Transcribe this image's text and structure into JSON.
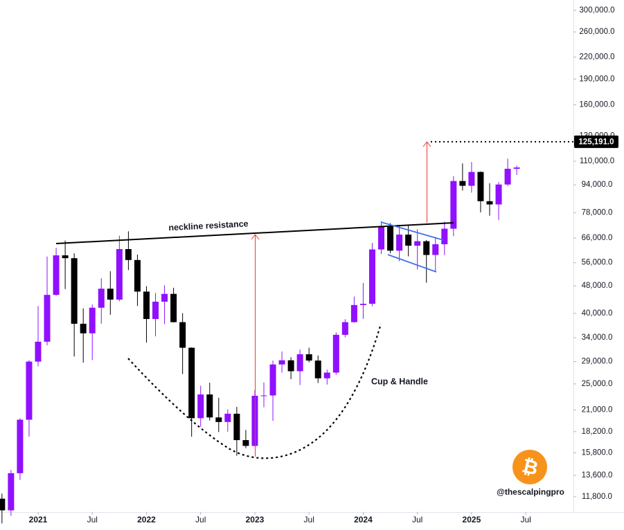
{
  "chart_data": {
    "type": "candlestick",
    "log_scale": true,
    "up_color": "#9010ff",
    "down_color": "#000000",
    "open": [
      11650,
      10780,
      13800,
      19700,
      29000,
      33100,
      45200,
      58800,
      57700,
      37300,
      35000,
      41500,
      47100,
      43800,
      61300,
      57000,
      46200,
      38500,
      43200,
      45500,
      37700,
      31800,
      19900,
      23300,
      20000,
      19400,
      20500,
      17200,
      16550,
      23100,
      23150,
      28450,
      29250,
      27200,
      30450,
      29200,
      25950,
      26950,
      34650,
      37700,
      42250,
      42600,
      61150,
      71300,
      60650,
      67500,
      62700,
      64600,
      58950,
      63300,
      70200,
      96400,
      93400,
      102400,
      84300,
      82500,
      94200,
      104600
    ],
    "high": [
      12050,
      14100,
      19900,
      29300,
      41950,
      58350,
      61780,
      64900,
      59600,
      41300,
      42400,
      50500,
      52900,
      67000,
      69000,
      59100,
      47900,
      45800,
      48200,
      47400,
      40000,
      31900,
      24700,
      25200,
      22800,
      21100,
      21450,
      18400,
      23950,
      25250,
      29200,
      31000,
      29850,
      31400,
      31800,
      30200,
      27500,
      35200,
      38450,
      44700,
      48950,
      63900,
      73800,
      72800,
      71950,
      71950,
      70000,
      65100,
      66500,
      73600,
      99600,
      108350,
      109400,
      102750,
      95000,
      95750,
      111900,
      106800
    ],
    "low": [
      9880,
      10400,
      13200,
      17600,
      28100,
      32300,
      44950,
      47000,
      30000,
      28800,
      29300,
      37300,
      39600,
      43300,
      53300,
      42000,
      32900,
      34300,
      37200,
      37600,
      26700,
      17600,
      18800,
      19600,
      18150,
      18200,
      15500,
      16300,
      16500,
      21400,
      19550,
      26950,
      25800,
      24800,
      28850,
      25150,
      24900,
      26550,
      34100,
      37600,
      38550,
      41900,
      59300,
      59600,
      56550,
      58400,
      53500,
      49000,
      52550,
      58900,
      66800,
      90500,
      89250,
      78250,
      76550,
      74400,
      93300,
      100400
    ],
    "close": [
      10780,
      13800,
      19700,
      29000,
      33100,
      45200,
      58800,
      57700,
      37300,
      35000,
      41500,
      47100,
      43800,
      61300,
      57000,
      46200,
      38500,
      43200,
      45500,
      37700,
      31800,
      19900,
      23300,
      20000,
      19400,
      20500,
      17200,
      16550,
      23100,
      23150,
      28450,
      29250,
      27200,
      30450,
      29200,
      25950,
      26950,
      34650,
      37700,
      42250,
      42600,
      61150,
      71300,
      60650,
      67500,
      62700,
      64600,
      58950,
      63300,
      70200,
      96400,
      93400,
      102400,
      84300,
      82500,
      94200,
      104600,
      105500
    ],
    "xlim": [
      -0.218,
      63.28
    ],
    "xticks": [
      {
        "value": 4,
        "label": "2021"
      },
      {
        "value": 10,
        "label": "Jul"
      },
      {
        "value": 16,
        "label": "2022"
      },
      {
        "value": 22,
        "label": "Jul"
      },
      {
        "value": 28,
        "label": "2023"
      },
      {
        "value": 34,
        "label": "Jul"
      },
      {
        "value": 40,
        "label": "2024"
      },
      {
        "value": 46,
        "label": "Jul"
      },
      {
        "value": 52,
        "label": "2025"
      },
      {
        "value": 58,
        "label": "Jul"
      }
    ],
    "ylim": [
      10660,
      321500
    ],
    "yticks": [
      {
        "value": 300000,
        "label": "300,000.0"
      },
      {
        "value": 260000,
        "label": "260,000.0"
      },
      {
        "value": 220000,
        "label": "220,000.0"
      },
      {
        "value": 190000,
        "label": "190,000.0"
      },
      {
        "value": 160000,
        "label": "160,000.0"
      },
      {
        "value": 130000,
        "label": "130,000.0"
      },
      {
        "value": 110000,
        "label": "110,000.0"
      },
      {
        "value": 94000,
        "label": "94,000.0"
      },
      {
        "value": 78000,
        "label": "78,000.0"
      },
      {
        "value": 66000,
        "label": "66,000.0"
      },
      {
        "value": 56000,
        "label": "56,000.0"
      },
      {
        "value": 48000,
        "label": "48,000.0"
      },
      {
        "value": 40000,
        "label": "40,000.0"
      },
      {
        "value": 34000,
        "label": "34,000.0"
      },
      {
        "value": 29000,
        "label": "29,000.0"
      },
      {
        "value": 25000,
        "label": "25,000.0"
      },
      {
        "value": 21000,
        "label": "21,000.0"
      },
      {
        "value": 18200,
        "label": "18,200.0"
      },
      {
        "value": 15800,
        "label": "15,800.0"
      },
      {
        "value": 13600,
        "label": "13,600.0"
      },
      {
        "value": 11800,
        "label": "11,800.0"
      }
    ],
    "target": {
      "value": 125191,
      "label": "125,191.0"
    },
    "neckline_label": "neckline resistance",
    "pattern_label": "Cup & Handle",
    "logo_symbol": "₿",
    "watermark": "@thescalpingpro"
  }
}
